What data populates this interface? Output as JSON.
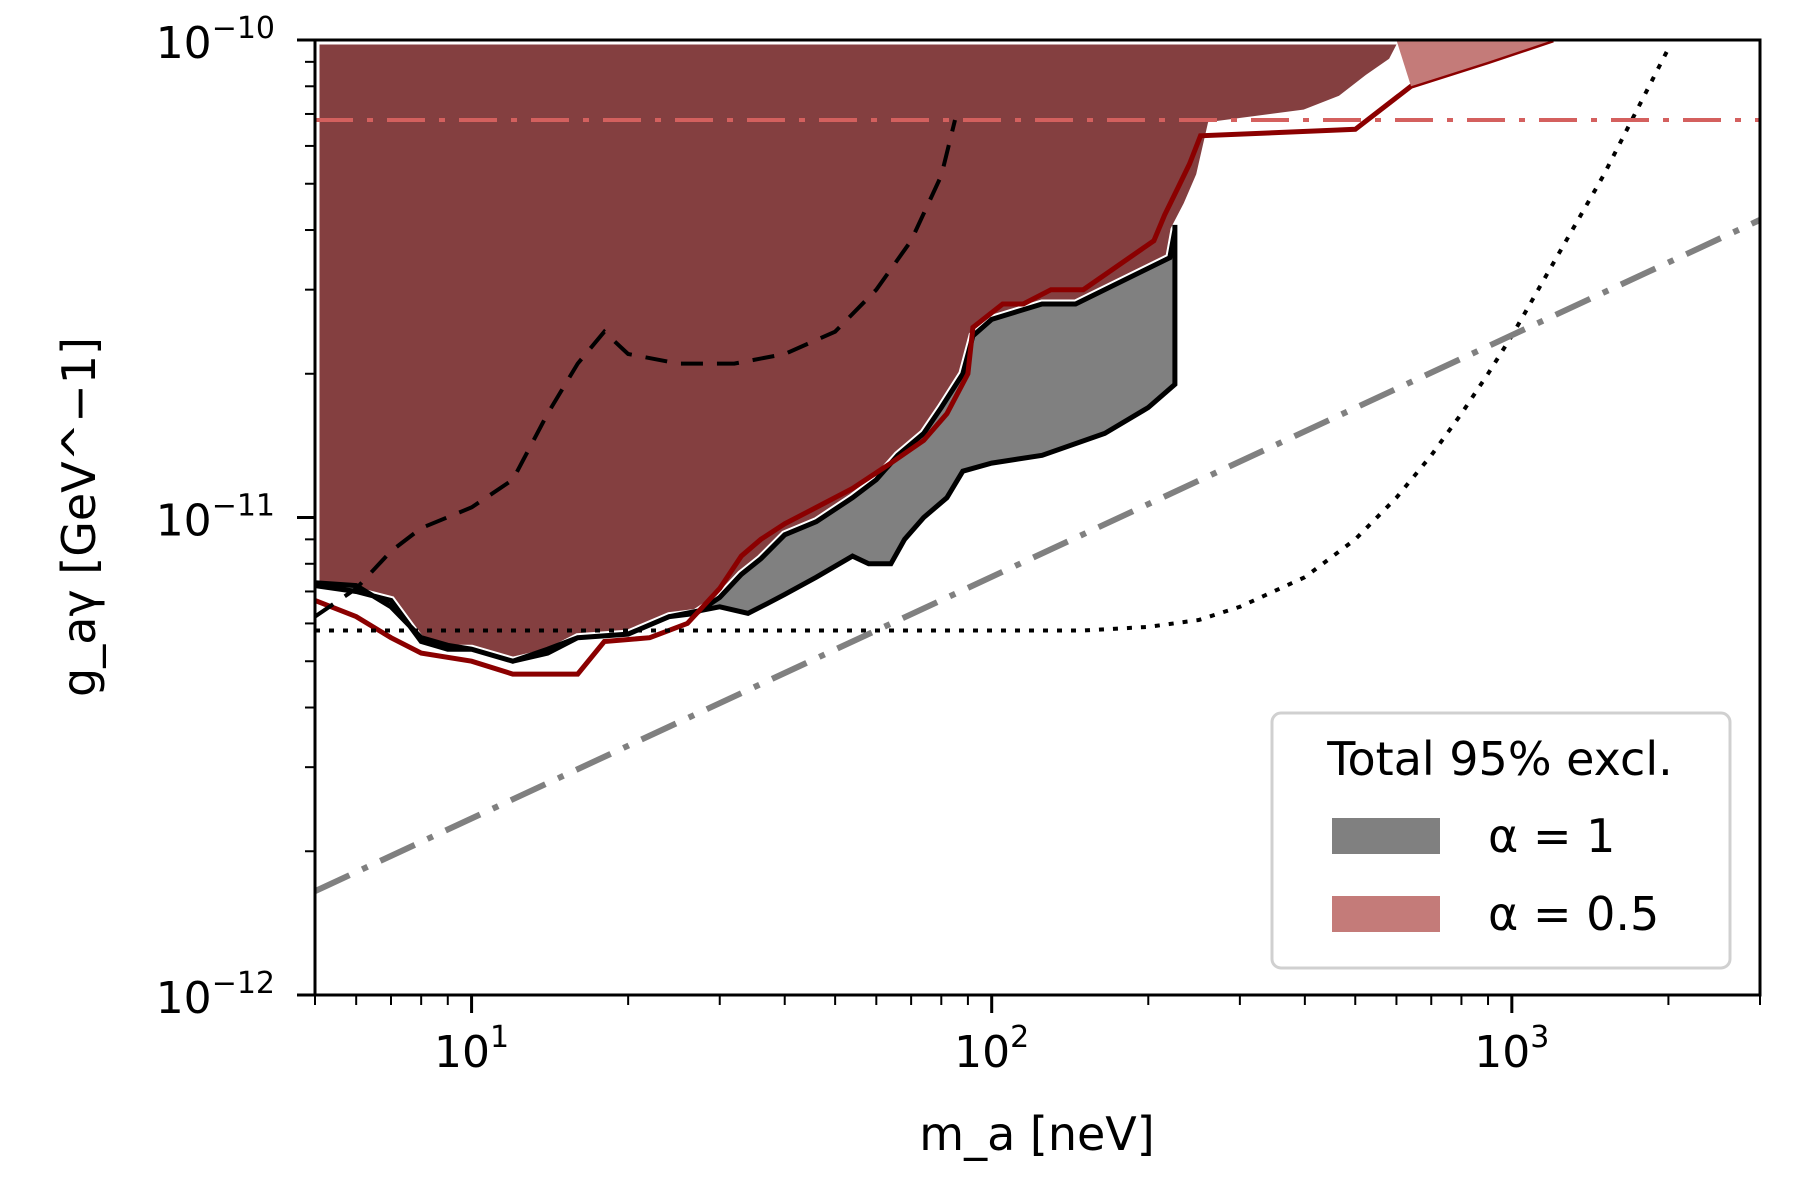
{
  "chart_data": {
    "type": "line",
    "xscale": "log",
    "yscale": "log",
    "xlim": [
      5,
      3000
    ],
    "ylim": [
      1e-12,
      1e-10
    ],
    "xlabel": "m_a [neV]",
    "ylabel": "g_aγ [GeV^−1]",
    "x_tick_labels": [
      {
        "value": 10,
        "base": "10",
        "exp": "1"
      },
      {
        "value": 100,
        "base": "10",
        "exp": "2"
      },
      {
        "value": 1000,
        "base": "10",
        "exp": "3"
      }
    ],
    "y_tick_labels": [
      {
        "value": 1e-12,
        "base": "10",
        "exp": "−12"
      },
      {
        "value": 1e-11,
        "base": "10",
        "exp": "−11"
      },
      {
        "value": 1e-10,
        "base": "10",
        "exp": "−10"
      }
    ],
    "legend": {
      "title": "Total 95% excl.",
      "placement": "lower-right",
      "entries": [
        {
          "label": "α = 1",
          "color": "#808080"
        },
        {
          "label": "α = 0.5",
          "color": "#c47b79"
        }
      ]
    },
    "colors": {
      "alpha1_fill": "#808080",
      "alpha05_fill": "#c47b79",
      "overlap_fill": "#843f40",
      "alpha05_line": "#8b0000",
      "hline": "#d4605e",
      "gray_line": "#808080"
    },
    "regions": {
      "excl_alpha1_upper": [
        [
          5,
          7.2e-12
        ],
        [
          6,
          7e-12
        ],
        [
          7,
          6.7e-12
        ],
        [
          8,
          5.5e-12
        ],
        [
          9,
          5.3e-12
        ],
        [
          10,
          5.3e-12
        ],
        [
          12,
          5e-12
        ],
        [
          14,
          5.2e-12
        ],
        [
          16,
          5.6e-12
        ],
        [
          20,
          5.7e-12
        ],
        [
          24,
          6.2e-12
        ],
        [
          27,
          6.3e-12
        ],
        [
          30,
          6.8e-12
        ],
        [
          33,
          7.6e-12
        ],
        [
          36,
          8.2e-12
        ],
        [
          40,
          9.2e-12
        ],
        [
          46,
          9.8e-12
        ],
        [
          54,
          1.1e-11
        ],
        [
          60,
          1.2e-11
        ],
        [
          66,
          1.35e-11
        ],
        [
          74,
          1.5e-11
        ],
        [
          80,
          1.7e-11
        ],
        [
          88,
          2e-11
        ],
        [
          92,
          2.4e-11
        ],
        [
          100,
          2.6e-11
        ],
        [
          112,
          2.7e-11
        ],
        [
          125,
          2.8e-11
        ],
        [
          145,
          2.8e-11
        ],
        [
          220,
          3.5e-11
        ],
        [
          225,
          4e-11
        ],
        [
          238,
          4.5e-11
        ],
        [
          252,
          5.2e-11
        ],
        [
          265,
          6.6e-11
        ],
        [
          400,
          7e-11
        ],
        [
          470,
          7.5e-11
        ],
        [
          530,
          8.3e-11
        ],
        [
          590,
          9e-11
        ],
        [
          620,
          1e-10
        ]
      ],
      "excl_alpha1_lower": [
        [
          5,
          7.3e-12
        ],
        [
          6,
          7.2e-12
        ],
        [
          7,
          6.5e-12
        ],
        [
          8,
          5.6e-12
        ],
        [
          9,
          5.4e-12
        ],
        [
          10,
          5.3e-12
        ],
        [
          12,
          5e-12
        ],
        [
          14,
          5.3e-12
        ],
        [
          16,
          5.6e-12
        ],
        [
          20,
          5.7e-12
        ],
        [
          24,
          6.2e-12
        ],
        [
          30,
          6.5e-12
        ],
        [
          34,
          6.3e-12
        ],
        [
          37,
          6.6e-12
        ],
        [
          40,
          6.9e-12
        ],
        [
          46,
          7.5e-12
        ],
        [
          54,
          8.3e-12
        ],
        [
          58,
          8e-12
        ],
        [
          64,
          8e-12
        ],
        [
          68,
          9e-12
        ],
        [
          74,
          1e-11
        ],
        [
          82,
          1.1e-11
        ],
        [
          88,
          1.25e-11
        ],
        [
          100,
          1.3e-11
        ],
        [
          125,
          1.35e-11
        ],
        [
          165,
          1.5e-11
        ],
        [
          200,
          1.7e-11
        ],
        [
          225,
          1.9e-11
        ],
        [
          225,
          4.1e-11
        ]
      ],
      "excl_alpha05": [
        [
          5,
          6.7e-12
        ],
        [
          6,
          6.2e-12
        ],
        [
          7,
          5.6e-12
        ],
        [
          8,
          5.2e-12
        ],
        [
          10,
          5e-12
        ],
        [
          12,
          4.7e-12
        ],
        [
          16,
          4.7e-12
        ],
        [
          18,
          5.5e-12
        ],
        [
          22,
          5.6e-12
        ],
        [
          26,
          6e-12
        ],
        [
          30,
          7.1e-12
        ],
        [
          33,
          8.3e-12
        ],
        [
          36,
          9e-12
        ],
        [
          40,
          9.7e-12
        ],
        [
          46,
          1.05e-11
        ],
        [
          54,
          1.15e-11
        ],
        [
          64,
          1.3e-11
        ],
        [
          74,
          1.45e-11
        ],
        [
          82,
          1.65e-11
        ],
        [
          90,
          2e-11
        ],
        [
          92,
          2.5e-11
        ],
        [
          105,
          2.8e-11
        ],
        [
          115,
          2.8e-11
        ],
        [
          130,
          3e-11
        ],
        [
          150,
          3e-11
        ],
        [
          205,
          3.8e-11
        ],
        [
          215,
          4.3e-11
        ],
        [
          228,
          4.9e-11
        ],
        [
          240,
          5.5e-11
        ],
        [
          252,
          6.3e-11
        ],
        [
          500,
          6.5e-11
        ],
        [
          640,
          8e-11
        ],
        [
          900,
          9e-11
        ],
        [
          1200,
          1e-10
        ]
      ]
    },
    "series": [
      {
        "style": "dashed",
        "color": "#000000",
        "x": [
          5,
          6,
          7,
          8,
          10,
          12,
          14,
          16,
          18,
          20,
          25,
          32,
          40,
          50,
          60,
          70,
          80,
          85
        ],
        "y": [
          6.2e-12,
          7.1e-12,
          8.5e-12,
          9.5e-12,
          1.05e-11,
          1.2e-11,
          1.65e-11,
          2.1e-11,
          2.45e-11,
          2.2e-11,
          2.1e-11,
          2.1e-11,
          2.2e-11,
          2.45e-11,
          3e-11,
          3.8e-11,
          5.2e-11,
          6.8e-11
        ]
      },
      {
        "style": "dotted",
        "color": "#000000",
        "x": [
          5,
          10,
          30,
          100,
          150,
          200,
          250,
          300,
          400,
          500,
          600,
          700,
          800,
          900,
          1000,
          1200,
          1500,
          2000
        ],
        "y": [
          5.8e-12,
          5.8e-12,
          5.8e-12,
          5.8e-12,
          5.8e-12,
          5.9e-12,
          6.1e-12,
          6.5e-12,
          7.5e-12,
          9e-12,
          1.1e-11,
          1.35e-11,
          1.65e-11,
          2e-11,
          2.4e-11,
          3.4e-11,
          5.2e-11,
          9.6e-11
        ]
      },
      {
        "style": "dashdot",
        "color": "#808080",
        "x": [
          5,
          3000
        ],
        "y": [
          1.65e-12,
          4.2e-11
        ]
      },
      {
        "style": "dashdot",
        "color": "#d4605e",
        "x": [
          5,
          3000
        ],
        "y": [
          6.8e-11,
          6.8e-11
        ]
      }
    ]
  }
}
